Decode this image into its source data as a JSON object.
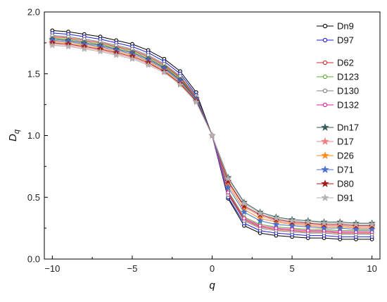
{
  "chart_data": {
    "type": "line",
    "xlabel": "q",
    "ylabel": "Dq",
    "ylabel_main": "D",
    "ylabel_sub": "q",
    "xlim": [
      -10.5,
      10.5
    ],
    "ylim": [
      0.0,
      2.0
    ],
    "x_ticks": [
      -10,
      -5,
      0,
      5,
      10
    ],
    "x_tick_labels": [
      "−10",
      "−5",
      "0",
      "5",
      "10"
    ],
    "y_ticks": [
      0.0,
      0.5,
      1.0,
      1.5,
      2.0
    ],
    "y_tick_labels": [
      "0.0",
      "0.5",
      "1.0",
      "1.5",
      "2.0"
    ],
    "grid": false,
    "legend_position": "top-right",
    "x": [
      -10,
      -9,
      -8,
      -7,
      -6,
      -5,
      -4,
      -3,
      -2,
      -1,
      0,
      1,
      2,
      3,
      4,
      5,
      6,
      7,
      8,
      9,
      10
    ],
    "series": [
      {
        "name": "Dn9",
        "color": "#000000",
        "marker": "circle",
        "group": 1,
        "values": [
          1.85,
          1.84,
          1.82,
          1.8,
          1.77,
          1.74,
          1.69,
          1.62,
          1.52,
          1.35,
          1.0,
          0.49,
          0.27,
          0.21,
          0.19,
          0.18,
          0.17,
          0.17,
          0.16,
          0.16,
          0.16
        ]
      },
      {
        "name": "D97",
        "color": "#1f1fd6",
        "marker": "circle",
        "group": 1,
        "values": [
          1.83,
          1.82,
          1.8,
          1.78,
          1.75,
          1.72,
          1.67,
          1.6,
          1.5,
          1.33,
          1.0,
          0.5,
          0.29,
          0.23,
          0.21,
          0.2,
          0.19,
          0.19,
          0.18,
          0.18,
          0.18
        ]
      },
      {
        "name": "D62",
        "color": "#d62728",
        "marker": "circle",
        "group": 2,
        "values": [
          1.8,
          1.79,
          1.77,
          1.75,
          1.72,
          1.69,
          1.64,
          1.57,
          1.47,
          1.31,
          1.0,
          0.53,
          0.32,
          0.26,
          0.24,
          0.23,
          0.22,
          0.22,
          0.21,
          0.21,
          0.21
        ]
      },
      {
        "name": "D123",
        "color": "#5fa830",
        "marker": "circle",
        "group": 2,
        "values": [
          1.79,
          1.78,
          1.76,
          1.74,
          1.71,
          1.68,
          1.63,
          1.56,
          1.46,
          1.3,
          1.0,
          0.55,
          0.34,
          0.28,
          0.26,
          0.25,
          0.24,
          0.24,
          0.23,
          0.23,
          0.23
        ]
      },
      {
        "name": "D130",
        "color": "#7f7f7f",
        "marker": "circle",
        "group": 2,
        "values": [
          1.81,
          1.8,
          1.78,
          1.76,
          1.73,
          1.7,
          1.65,
          1.58,
          1.48,
          1.32,
          1.0,
          0.52,
          0.31,
          0.25,
          0.23,
          0.22,
          0.21,
          0.21,
          0.2,
          0.2,
          0.2
        ]
      },
      {
        "name": "D132",
        "color": "#e0209a",
        "marker": "circle",
        "group": 2,
        "values": [
          1.78,
          1.77,
          1.75,
          1.73,
          1.7,
          1.67,
          1.62,
          1.55,
          1.45,
          1.3,
          1.0,
          0.54,
          0.33,
          0.27,
          0.25,
          0.24,
          0.23,
          0.23,
          0.22,
          0.22,
          0.22
        ]
      },
      {
        "name": "Dn17",
        "color": "#3a5a5a",
        "marker": "star",
        "group": 3,
        "values": [
          1.78,
          1.77,
          1.75,
          1.73,
          1.7,
          1.67,
          1.62,
          1.55,
          1.45,
          1.3,
          1.0,
          0.66,
          0.46,
          0.38,
          0.34,
          0.32,
          0.31,
          0.3,
          0.3,
          0.29,
          0.29
        ]
      },
      {
        "name": "D17",
        "color": "#f08080",
        "marker": "star",
        "group": 3,
        "values": [
          1.74,
          1.73,
          1.71,
          1.69,
          1.66,
          1.63,
          1.58,
          1.52,
          1.42,
          1.28,
          1.0,
          0.62,
          0.42,
          0.35,
          0.31,
          0.29,
          0.28,
          0.27,
          0.27,
          0.26,
          0.26
        ]
      },
      {
        "name": "D26",
        "color": "#ff8c1a",
        "marker": "star",
        "group": 3,
        "values": [
          1.76,
          1.75,
          1.73,
          1.71,
          1.68,
          1.65,
          1.6,
          1.53,
          1.43,
          1.29,
          1.0,
          0.6,
          0.4,
          0.33,
          0.3,
          0.28,
          0.27,
          0.26,
          0.26,
          0.25,
          0.25
        ]
      },
      {
        "name": "D71",
        "color": "#4a6fd0",
        "marker": "star",
        "group": 3,
        "values": [
          1.77,
          1.76,
          1.74,
          1.72,
          1.69,
          1.66,
          1.61,
          1.54,
          1.44,
          1.29,
          1.0,
          0.58,
          0.38,
          0.31,
          0.28,
          0.27,
          0.26,
          0.25,
          0.25,
          0.24,
          0.24
        ]
      },
      {
        "name": "D80",
        "color": "#a31a1a",
        "marker": "star",
        "group": 3,
        "values": [
          1.75,
          1.74,
          1.72,
          1.7,
          1.67,
          1.64,
          1.59,
          1.52,
          1.42,
          1.28,
          1.0,
          0.63,
          0.43,
          0.36,
          0.32,
          0.3,
          0.29,
          0.28,
          0.28,
          0.27,
          0.27
        ]
      },
      {
        "name": "D91",
        "color": "#b3b3b3",
        "marker": "star",
        "group": 3,
        "values": [
          1.73,
          1.72,
          1.7,
          1.68,
          1.65,
          1.62,
          1.57,
          1.51,
          1.41,
          1.27,
          1.0,
          0.65,
          0.45,
          0.37,
          0.33,
          0.31,
          0.3,
          0.29,
          0.29,
          0.28,
          0.28
        ]
      }
    ]
  }
}
